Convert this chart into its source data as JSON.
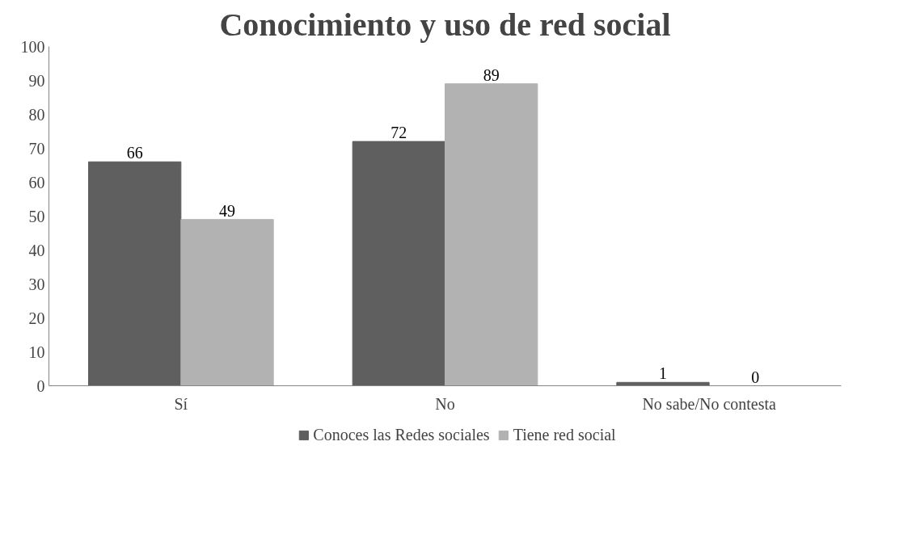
{
  "chart_data": {
    "type": "bar",
    "title": "Conocimiento y uso de red social",
    "categories": [
      "Sí",
      "No",
      "No sabe/No contesta"
    ],
    "series": [
      {
        "name": "Conoces las Redes sociales",
        "color": "#5f5f5f",
        "values": [
          66,
          72,
          1
        ]
      },
      {
        "name": "Tiene red social",
        "color": "#b2b2b2",
        "values": [
          49,
          89,
          0
        ]
      }
    ],
    "ylim": [
      0,
      100
    ],
    "yticks": [
      0,
      10,
      20,
      30,
      40,
      50,
      60,
      70,
      80,
      90,
      100
    ],
    "grid": false,
    "legend": "bottom",
    "data_labels": true
  }
}
